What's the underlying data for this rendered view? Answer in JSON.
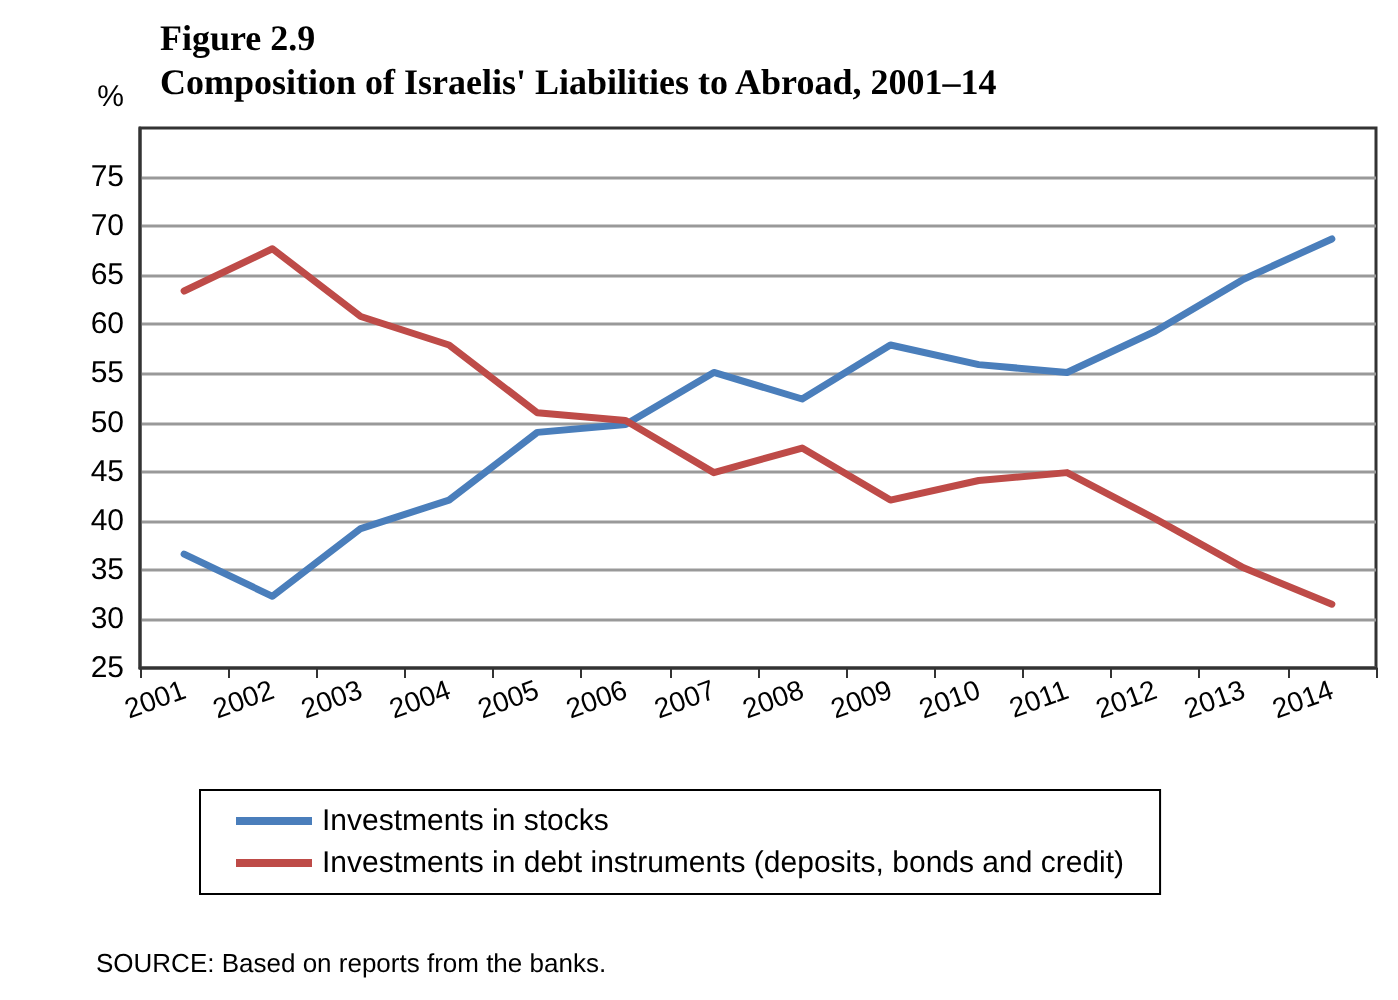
{
  "chart_data": {
    "type": "line",
    "title": "Figure 2.9",
    "subtitle": "Composition of Israelis' Liabilities to Abroad, 2001–14",
    "ylabel": "%",
    "categories": [
      "2001",
      "2002",
      "2003",
      "2004",
      "2005",
      "2006",
      "2007",
      "2008",
      "2009",
      "2010",
      "2011",
      "2012",
      "2013",
      "2014"
    ],
    "series": [
      {
        "name": "Investments in stocks",
        "color": "#4a7ebb",
        "values": [
          36.6,
          32.3,
          39.2,
          42.1,
          49,
          49.8,
          55.1,
          52.4,
          57.9,
          55.9,
          55.1,
          59.3,
          64.6,
          68.7
        ]
      },
      {
        "name": "Investments in debt instruments (deposits, bonds and credit)",
        "color": "#be4b48",
        "values": [
          63.4,
          67.7,
          60.8,
          57.9,
          51,
          50.2,
          44.9,
          47.4,
          42.1,
          44.1,
          44.9,
          40.2,
          35.2,
          31.5
        ]
      }
    ],
    "ylim": [
      25,
      80
    ],
    "yticks": [
      25,
      30,
      35,
      40,
      45,
      50,
      55,
      60,
      65,
      70,
      75
    ],
    "grid": "y",
    "legend": "bottom",
    "marker": "none",
    "line_style": "solid",
    "annotations": [
      "SOURCE: Based on reports from the banks."
    ]
  }
}
